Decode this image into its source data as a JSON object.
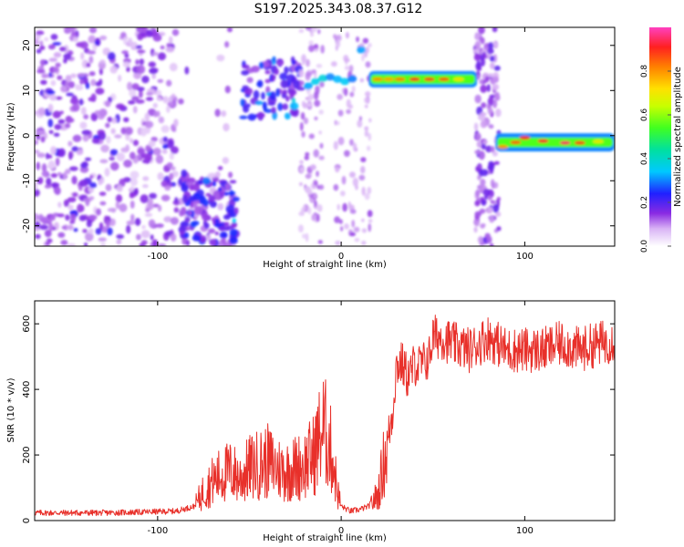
{
  "title": "S197.2025.343.08.37.G12",
  "colors": {
    "snr_line": "#e8302a",
    "axis": "#000000"
  },
  "chart_data": [
    {
      "type": "heatmap",
      "xlabel": "Height of straight line (km)",
      "ylabel": "Frequency (Hz)",
      "xlim": [
        -167,
        149
      ],
      "ylim": [
        -24.5,
        24
      ],
      "xticks": [
        -100,
        0,
        100
      ],
      "xtick_labels": [
        "-100",
        "0",
        "100"
      ],
      "yticks": [
        -20,
        -10,
        0,
        10,
        20
      ],
      "ytick_labels": [
        "-20",
        "-10",
        "0",
        "10",
        "20"
      ],
      "colorbar": {
        "label": "Normalized spectral amplitude",
        "range": [
          0,
          1
        ],
        "ticks": [
          0.0,
          0.2,
          0.4,
          0.6,
          0.8
        ],
        "tick_labels": [
          "0.0",
          "0.2",
          "0.4",
          "0.6",
          "0.8"
        ]
      },
      "features": [
        {
          "name": "noise-scatter-left",
          "x_range": [
            -167,
            -57
          ],
          "freq_range": [
            -24.5,
            24
          ],
          "amplitude": 0.15
        },
        {
          "name": "low-cluster",
          "x_range": [
            -90,
            -57
          ],
          "freq_range": [
            -24,
            -10
          ],
          "amplitude": 0.3
        },
        {
          "name": "mid-cluster",
          "x_range": [
            -54,
            -22
          ],
          "freq_range": [
            4,
            17
          ],
          "amplitude": 0.3
        },
        {
          "name": "tone-upper",
          "x_range": [
            15,
            74
          ],
          "freq": 12.5,
          "amplitude": 0.85
        },
        {
          "name": "tone-lower",
          "x_range": [
            84,
            149
          ],
          "freq": -1.5,
          "amplitude": 0.9
        },
        {
          "name": "vertical-band",
          "x_range": [
            73,
            86
          ],
          "freq_range": [
            -24.5,
            24
          ],
          "amplitude": 0.2
        }
      ]
    },
    {
      "type": "line",
      "xlabel": "Height of straight line (km)",
      "ylabel": "SNR (10 * v/v)",
      "xlim": [
        -167,
        149
      ],
      "ylim": [
        0,
        670
      ],
      "xticks": [
        -100,
        0,
        100
      ],
      "xtick_labels": [
        "-100",
        "0",
        "100"
      ],
      "yticks": [
        0,
        200,
        400,
        600
      ],
      "ytick_labels": [
        "0",
        "200",
        "400",
        "600"
      ],
      "series": [
        {
          "name": "SNR",
          "x": [
            -167,
            -150,
            -130,
            -110,
            -90,
            -80,
            -75,
            -70,
            -65,
            -60,
            -55,
            -50,
            -45,
            -40,
            -35,
            -30,
            -25,
            -20,
            -15,
            -12,
            -10,
            -8,
            -5,
            -2,
            0,
            5,
            10,
            15,
            20,
            25,
            28,
            30,
            33,
            36,
            38,
            40,
            42,
            45,
            48,
            50,
            55,
            60,
            70,
            80,
            90,
            100,
            110,
            120,
            130,
            140,
            149
          ],
          "values": [
            20,
            20,
            20,
            22,
            25,
            40,
            90,
            120,
            140,
            150,
            130,
            160,
            170,
            180,
            160,
            150,
            160,
            170,
            200,
            250,
            280,
            260,
            200,
            90,
            40,
            25,
            30,
            40,
            80,
            230,
            330,
            470,
            480,
            440,
            450,
            480,
            470,
            480,
            500,
            560,
            560,
            540,
            520,
            560,
            520,
            520,
            520,
            540,
            520,
            540,
            550
          ]
        }
      ]
    }
  ]
}
